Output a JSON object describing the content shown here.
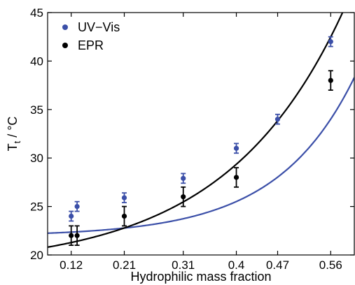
{
  "chart_data": {
    "type": "scatter",
    "xlabel": "Hydrophilic mass fraction",
    "ylabel": "T",
    "ylabel_sub": "t",
    "ylabel_unit": "/ °C",
    "xlim": [
      0.08,
      0.6
    ],
    "ylim": [
      20,
      45
    ],
    "x_ticks": [
      0.12,
      0.21,
      0.31,
      0.4,
      0.47,
      0.56
    ],
    "x_tick_labels": [
      "0.12",
      "0.21",
      "0.31",
      "0.4",
      "0.47",
      "0.56"
    ],
    "y_ticks": [
      20,
      25,
      30,
      35,
      40,
      45
    ],
    "y_tick_labels": [
      "20",
      "25",
      "30",
      "35",
      "40",
      "45"
    ],
    "grid": false,
    "legend_position": "top-left",
    "series": [
      {
        "name": "UV−Vis",
        "color": "#3b4fa8",
        "x": [
          0.12,
          0.13,
          0.21,
          0.31,
          0.4,
          0.47,
          0.56
        ],
        "y": [
          24.0,
          25.0,
          25.9,
          27.9,
          31.0,
          34.0,
          42.0
        ],
        "err": [
          0.5,
          0.5,
          0.5,
          0.5,
          0.5,
          0.5,
          0.5
        ],
        "fit": {
          "a": 21.93,
          "b": 0.1713,
          "c": 7.6
        }
      },
      {
        "name": "EPR",
        "color": "#000000",
        "x": [
          0.12,
          0.13,
          0.21,
          0.31,
          0.4,
          0.56
        ],
        "y": [
          22.0,
          22.0,
          24.0,
          26.0,
          28.0,
          38.0
        ],
        "err": [
          1.0,
          1.0,
          1.0,
          1.0,
          1.0,
          1.0
        ],
        "fit": {
          "a": 18.64,
          "b": 1.45,
          "c": 5.0
        }
      }
    ]
  }
}
